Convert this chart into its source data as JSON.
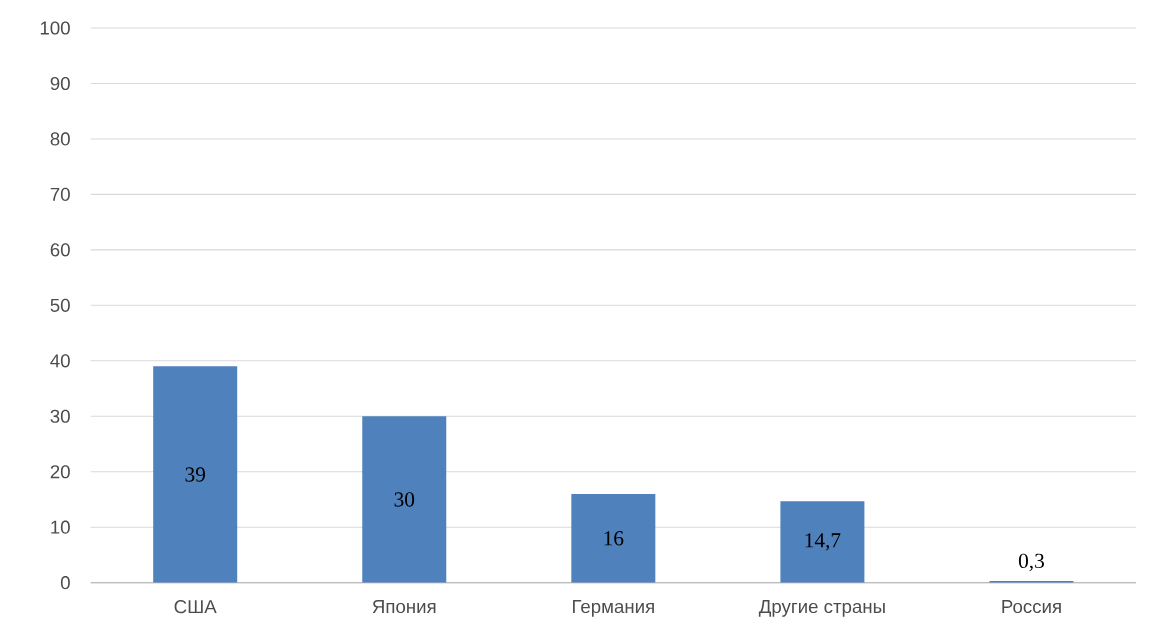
{
  "chart_data": {
    "type": "bar",
    "categories": [
      "США",
      "Япония",
      "Германия",
      "Другие страны",
      "Россия"
    ],
    "values": [
      39,
      30,
      16,
      14.7,
      0.3
    ],
    "value_labels": [
      "39",
      "30",
      "16",
      "14,7",
      "0,3"
    ],
    "color": "#4f81bd",
    "ylim": [
      0,
      100
    ],
    "yticks": [
      0,
      10,
      20,
      30,
      40,
      50,
      60,
      70,
      80,
      90,
      100
    ],
    "grid": "y"
  }
}
